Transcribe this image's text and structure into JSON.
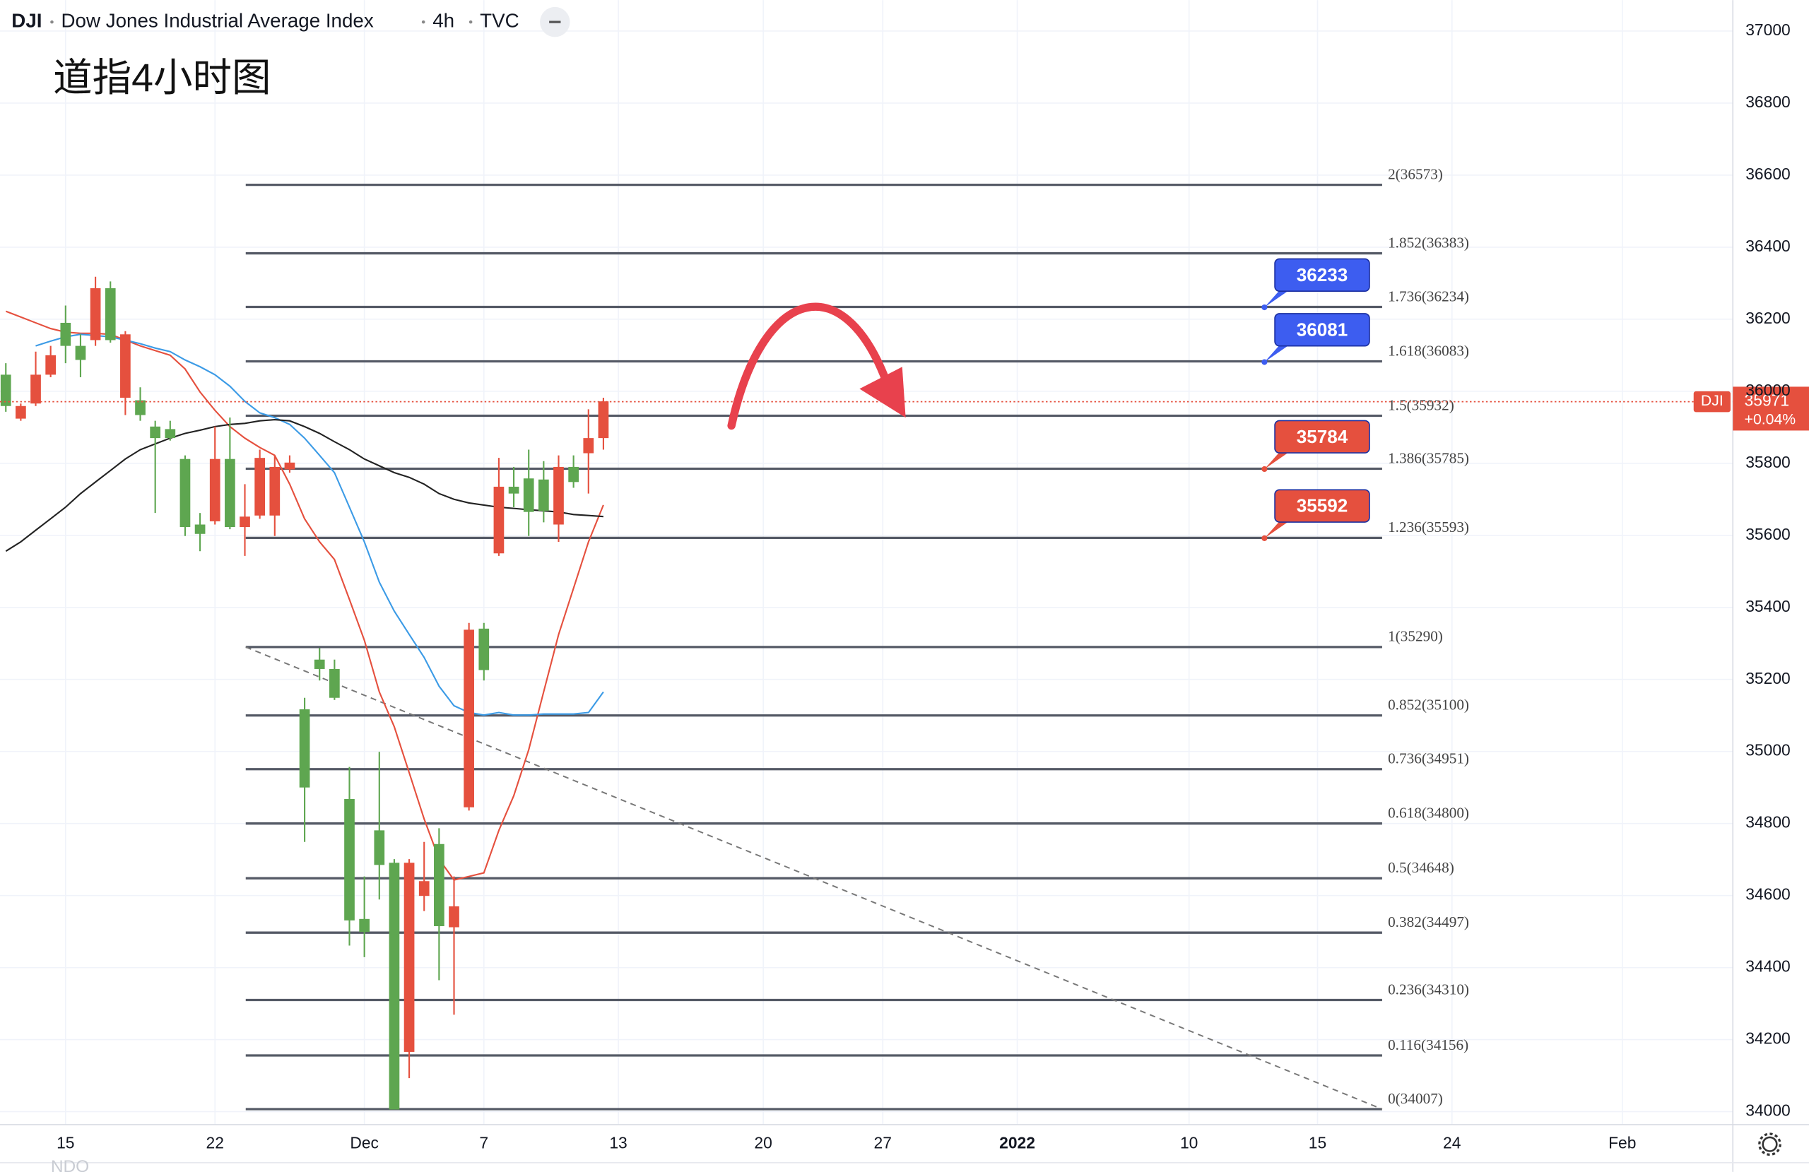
{
  "chart_data": {
    "type": "candlestick",
    "symbol": "DJI",
    "title": "Dow Jones Industrial Average Index",
    "interval": "4h",
    "source": "TVC",
    "annotation": "道指4小时图",
    "footer": "NDQ",
    "xlim": [
      -0.39,
      115.6
    ],
    "xticks": [
      {
        "value": 4,
        "label": "15"
      },
      {
        "value": 14,
        "label": "22"
      },
      {
        "value": 24,
        "label": "Dec"
      },
      {
        "value": 32,
        "label": "7"
      },
      {
        "value": 41,
        "label": "13"
      },
      {
        "value": 50.7,
        "label": "20"
      },
      {
        "value": 58.7,
        "label": "27"
      },
      {
        "value": 67.7,
        "label": "2022"
      },
      {
        "value": 79.2,
        "label": "10"
      },
      {
        "value": 87.8,
        "label": "15"
      },
      {
        "value": 96.8,
        "label": "24"
      },
      {
        "value": 108.2,
        "label": "Feb"
      }
    ],
    "ylim": [
      33964,
      37086
    ],
    "yticks": [
      34000,
      34200,
      34400,
      34600,
      34800,
      35000,
      35200,
      35400,
      35600,
      35800,
      36000,
      36200,
      36400,
      36600,
      36800,
      37000
    ],
    "grid": true,
    "up_color": "#5ea650",
    "down_color": "#e5503e",
    "candles": {
      "open": [
        35959,
        35959,
        36046,
        36100,
        36126,
        36087,
        36286,
        36142,
        36158,
        35934,
        35870,
        35870,
        35623,
        35604,
        35812,
        35623,
        35652,
        35815,
        35790,
        35802,
        34900,
        35229,
        35149,
        34531,
        34499,
        34685,
        34006,
        34691,
        34640,
        34515,
        34570,
        35338,
        35226,
        35735,
        35716,
        35665,
        35668,
        35790,
        35748,
        35870,
        35972
      ],
      "high": [
        36078,
        35966,
        36110,
        36126,
        36238,
        36158,
        36318,
        36305,
        36167,
        36011,
        35918,
        35918,
        35822,
        35662,
        35902,
        35927,
        35742,
        35838,
        35822,
        35822,
        35149,
        35287,
        35255,
        34957,
        34653,
        34999,
        34701,
        34701,
        34749,
        34787,
        34653,
        35357,
        35357,
        35815,
        35790,
        35838,
        35806,
        35822,
        35822,
        35950,
        35982
      ],
      "low": [
        35943,
        35918,
        35959,
        36039,
        36078,
        36039,
        36126,
        36135,
        35934,
        35918,
        35662,
        35863,
        35598,
        35556,
        35630,
        35617,
        35543,
        35646,
        35598,
        35774,
        34749,
        35197,
        35143,
        34461,
        34429,
        34589,
        34006,
        34093,
        34557,
        34365,
        34269,
        34836,
        35197,
        35543,
        35678,
        35598,
        35636,
        35582,
        35732,
        35716,
        35838
      ],
      "close": [
        36046,
        35924,
        35966,
        36046,
        36190,
        36126,
        36142,
        36286,
        35982,
        35975,
        35902,
        35895,
        35812,
        35630,
        35639,
        35812,
        35623,
        35655,
        35655,
        35783,
        35117,
        35255,
        35229,
        34868,
        34535,
        34781,
        34691,
        34166,
        34599,
        34743,
        34512,
        34845,
        35341,
        35550,
        35735,
        35758,
        35755,
        35630,
        35790,
        35828,
        35870
      ]
    },
    "moving_averages": [
      {
        "color": "#e5503e",
        "values": [
          36222,
          36206,
          36190,
          36174,
          36164,
          36161,
          36161,
          36158,
          36142,
          36126,
          36113,
          36100,
          36062,
          35998,
          35947,
          35902,
          35870,
          35844,
          35822,
          35742,
          35646,
          35582,
          35533,
          35422,
          35309,
          35165,
          35069,
          34941,
          34813,
          34701,
          34643,
          34653,
          34663,
          34781,
          34877,
          35005,
          35165,
          35325,
          35453,
          35582,
          35684
        ]
      },
      {
        "color": "#3c9be6",
        "values": [
          null,
          null,
          36126,
          36139,
          36151,
          36158,
          36155,
          36151,
          36142,
          36132,
          36120,
          36110,
          36087,
          36068,
          36046,
          36014,
          35972,
          35940,
          35927,
          35908,
          35870,
          35822,
          35774,
          35678,
          35582,
          35470,
          35390,
          35325,
          35261,
          35181,
          35127,
          35108,
          35101,
          35108,
          35101,
          35101,
          35104,
          35104,
          35104,
          35108,
          35165
        ]
      },
      {
        "color": "#222222",
        "values": [
          35556,
          35582,
          35614,
          35646,
          35678,
          35716,
          35748,
          35780,
          35812,
          35838,
          35854,
          35870,
          35883,
          35892,
          35902,
          35908,
          35911,
          35918,
          35921,
          35918,
          35902,
          35883,
          35860,
          35838,
          35812,
          35793,
          35774,
          35761,
          35742,
          35716,
          35700,
          35690,
          35684,
          35678,
          35675,
          35671,
          35668,
          35665,
          35658,
          35655,
          35652
        ]
      }
    ],
    "fib_levels": [
      {
        "value": 36573,
        "label": "2(36573)"
      },
      {
        "value": 36383,
        "label": "1.852(36383)"
      },
      {
        "value": 36234,
        "label": "1.736(36234)"
      },
      {
        "value": 36083,
        "label": "1.618(36083)"
      },
      {
        "value": 35932,
        "label": "1.5(35932)"
      },
      {
        "value": 35785,
        "label": "1.386(35785)"
      },
      {
        "value": 35593,
        "label": "1.236(35593)"
      },
      {
        "value": 35290,
        "label": "1(35290)"
      },
      {
        "value": 35100,
        "label": "0.852(35100)"
      },
      {
        "value": 34951,
        "label": "0.736(34951)"
      },
      {
        "value": 34800,
        "label": "0.618(34800)"
      },
      {
        "value": 34648,
        "label": "0.5(34648)"
      },
      {
        "value": 34497,
        "label": "0.382(34497)"
      },
      {
        "value": 34310,
        "label": "0.236(34310)"
      },
      {
        "value": 34156,
        "label": "0.116(34156)"
      },
      {
        "value": 34007,
        "label": "0(34007)"
      }
    ],
    "callouts": [
      {
        "value": 36233,
        "color": "#3d5df0"
      },
      {
        "value": 36081,
        "color": "#3d5df0"
      },
      {
        "value": 35784,
        "color": "#e5503e"
      },
      {
        "value": 35592,
        "color": "#e5503e"
      }
    ],
    "last_price": 35971,
    "last_change": "+0.04%",
    "price_tag_color": "#e5503e"
  }
}
